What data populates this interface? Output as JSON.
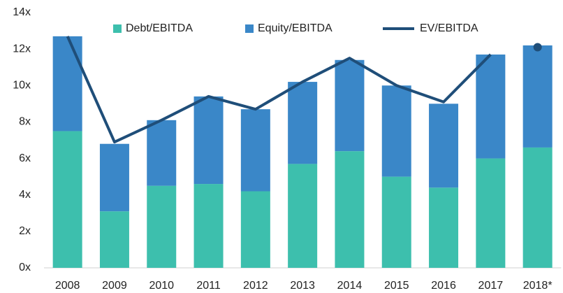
{
  "chart_data": {
    "type": "bar",
    "stacked": true,
    "categories": [
      "2008",
      "2009",
      "2010",
      "2011",
      "2012",
      "2013",
      "2014",
      "2015",
      "2016",
      "2017",
      "2018*"
    ],
    "series": [
      {
        "name": "Debt/EBITDA",
        "color": "#3dbfad",
        "values": [
          7.5,
          3.1,
          4.5,
          4.6,
          4.2,
          5.7,
          6.4,
          5.0,
          4.4,
          6.0,
          6.6
        ]
      },
      {
        "name": "Equity/EBITDA",
        "color": "#3a87c8",
        "values": [
          5.2,
          3.7,
          3.6,
          4.8,
          4.5,
          4.5,
          5.0,
          5.0,
          4.6,
          5.7,
          5.6
        ]
      },
      {
        "name": "EV/EBITDA",
        "color": "#1f4e79",
        "type": "line",
        "marker_last": true,
        "values": [
          12.7,
          6.9,
          8.1,
          9.4,
          8.7,
          10.2,
          11.5,
          10.0,
          9.1,
          11.7,
          12.1
        ]
      }
    ],
    "ylim": [
      0,
      14
    ],
    "yticks": [
      {
        "value": 0,
        "label": "0x"
      },
      {
        "value": 2,
        "label": "2x"
      },
      {
        "value": 4,
        "label": "4x"
      },
      {
        "value": 6,
        "label": "6x"
      },
      {
        "value": 8,
        "label": "8x"
      },
      {
        "value": 10,
        "label": "10x"
      },
      {
        "value": 12,
        "label": "12x"
      },
      {
        "value": 14,
        "label": "14x"
      }
    ],
    "legend": "top"
  }
}
